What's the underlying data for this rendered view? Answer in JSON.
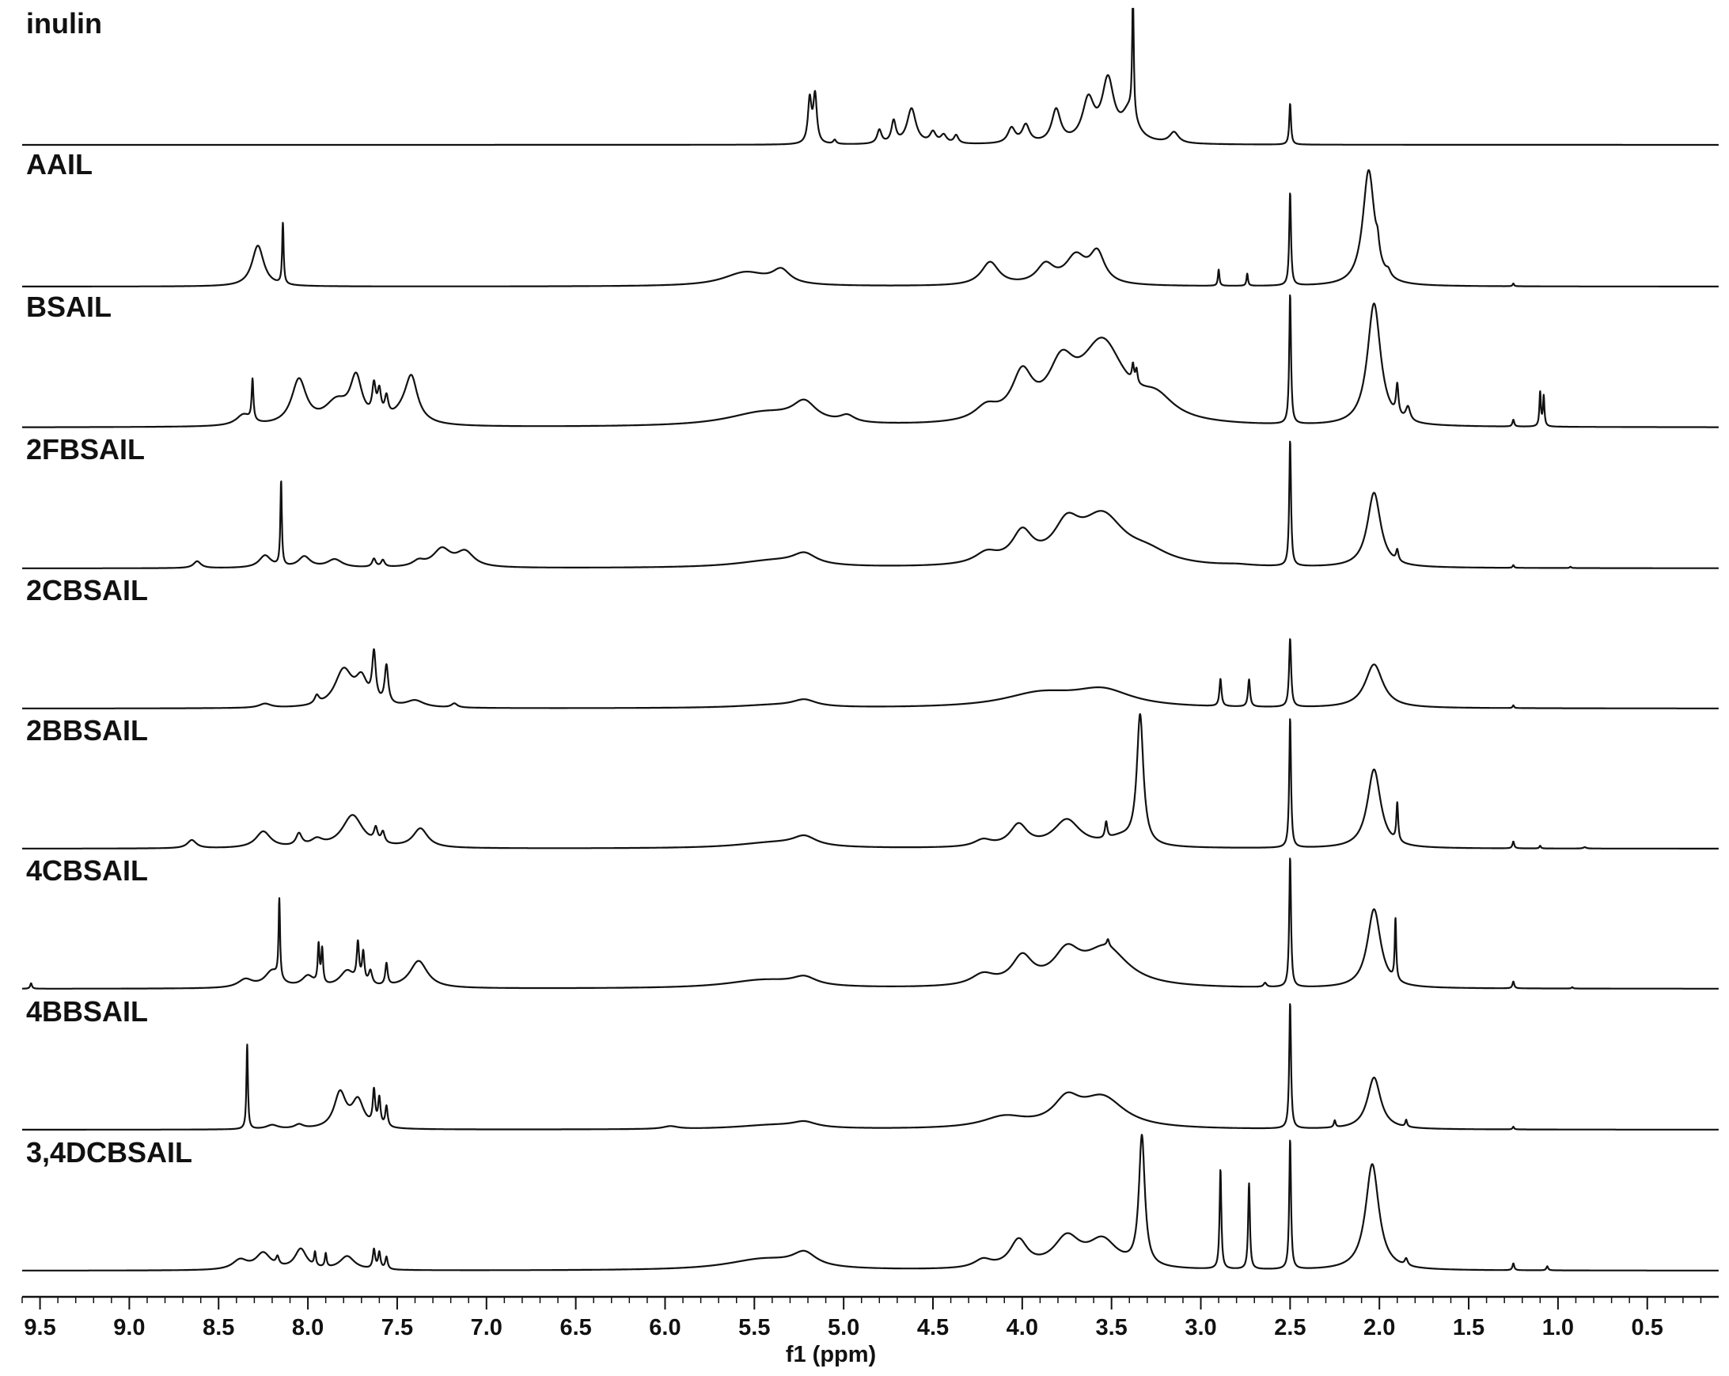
{
  "chart_data": {
    "type": "line",
    "title": "",
    "xlabel": "f1 (ppm)",
    "ylabel": "",
    "xlim": [
      9.6,
      0.1
    ],
    "x_reversed": true,
    "grid": false,
    "legend": "none",
    "xticks": [
      "9.5",
      "9.0",
      "8.5",
      "8.0",
      "7.5",
      "7.0",
      "6.5",
      "6.0",
      "5.5",
      "5.0",
      "4.5",
      "4.0",
      "3.5",
      "3.0",
      "2.5",
      "2.0",
      "1.5",
      "1.0",
      "0.5"
    ],
    "line_color": "#111111",
    "series": [
      {
        "name": "inulin",
        "peaks": [
          [
            5.19,
            0.32,
            0.012
          ],
          [
            5.16,
            0.35,
            0.012
          ],
          [
            5.05,
            0.03,
            0.01
          ],
          [
            4.8,
            0.1,
            0.015
          ],
          [
            4.72,
            0.16,
            0.015
          ],
          [
            4.62,
            0.26,
            0.03
          ],
          [
            4.5,
            0.08,
            0.02
          ],
          [
            4.44,
            0.06,
            0.02
          ],
          [
            4.37,
            0.06,
            0.015
          ],
          [
            4.06,
            0.11,
            0.025
          ],
          [
            3.98,
            0.13,
            0.025
          ],
          [
            3.81,
            0.24,
            0.03
          ],
          [
            3.63,
            0.3,
            0.04
          ],
          [
            3.52,
            0.44,
            0.04
          ],
          [
            3.4,
            0.22,
            0.05
          ],
          [
            3.38,
            0.95,
            0.005
          ],
          [
            3.15,
            0.08,
            0.03
          ],
          [
            2.5,
            0.3,
            0.006
          ]
        ]
      },
      {
        "name": "AAIL",
        "peaks": [
          [
            8.28,
            0.3,
            0.04
          ],
          [
            8.14,
            0.45,
            0.005
          ],
          [
            5.55,
            0.1,
            0.15
          ],
          [
            5.35,
            0.1,
            0.06
          ],
          [
            4.18,
            0.17,
            0.06
          ],
          [
            3.87,
            0.14,
            0.06
          ],
          [
            3.7,
            0.2,
            0.07
          ],
          [
            3.58,
            0.22,
            0.05
          ],
          [
            2.9,
            0.12,
            0.005
          ],
          [
            2.74,
            0.09,
            0.005
          ],
          [
            2.5,
            0.68,
            0.006
          ],
          [
            2.06,
            0.85,
            0.04
          ],
          [
            2.01,
            0.1,
            0.01
          ],
          [
            1.95,
            0.04,
            0.015
          ],
          [
            1.25,
            0.02,
            0.005
          ]
        ]
      },
      {
        "name": "BSAIL",
        "peaks": [
          [
            8.36,
            0.08,
            0.05
          ],
          [
            8.31,
            0.3,
            0.006
          ],
          [
            8.05,
            0.33,
            0.05
          ],
          [
            7.84,
            0.16,
            0.08
          ],
          [
            7.73,
            0.32,
            0.04
          ],
          [
            7.63,
            0.22,
            0.012
          ],
          [
            7.6,
            0.18,
            0.012
          ],
          [
            7.56,
            0.14,
            0.012
          ],
          [
            7.45,
            0.1,
            0.08
          ],
          [
            7.42,
            0.28,
            0.04
          ],
          [
            5.45,
            0.1,
            0.25
          ],
          [
            5.22,
            0.14,
            0.08
          ],
          [
            4.98,
            0.05,
            0.05
          ],
          [
            4.2,
            0.1,
            0.08
          ],
          [
            4.0,
            0.32,
            0.07
          ],
          [
            3.78,
            0.35,
            0.09
          ],
          [
            3.55,
            0.58,
            0.15
          ],
          [
            3.38,
            0.12,
            0.007
          ],
          [
            3.36,
            0.1,
            0.007
          ],
          [
            3.25,
            0.15,
            0.12
          ],
          [
            2.5,
            0.95,
            0.006
          ],
          [
            2.03,
            0.9,
            0.045
          ],
          [
            1.9,
            0.22,
            0.008
          ],
          [
            1.84,
            0.1,
            0.015
          ],
          [
            1.25,
            0.05,
            0.006
          ],
          [
            1.1,
            0.25,
            0.005
          ],
          [
            1.08,
            0.22,
            0.005
          ]
        ]
      },
      {
        "name": "2FBSAIL",
        "peaks": [
          [
            8.62,
            0.05,
            0.025
          ],
          [
            8.24,
            0.09,
            0.04
          ],
          [
            8.15,
            0.62,
            0.005
          ],
          [
            8.02,
            0.08,
            0.04
          ],
          [
            7.85,
            0.06,
            0.05
          ],
          [
            7.63,
            0.06,
            0.012
          ],
          [
            7.58,
            0.05,
            0.012
          ],
          [
            7.38,
            0.04,
            0.04
          ],
          [
            7.25,
            0.13,
            0.06
          ],
          [
            7.12,
            0.11,
            0.06
          ],
          [
            5.4,
            0.05,
            0.25
          ],
          [
            5.22,
            0.08,
            0.08
          ],
          [
            4.2,
            0.08,
            0.08
          ],
          [
            4.0,
            0.22,
            0.07
          ],
          [
            3.75,
            0.25,
            0.09
          ],
          [
            3.55,
            0.35,
            0.15
          ],
          [
            3.3,
            0.08,
            0.15
          ],
          [
            2.8,
            0.01,
            0.1
          ],
          [
            2.5,
            0.92,
            0.006
          ],
          [
            2.03,
            0.55,
            0.045
          ],
          [
            1.9,
            0.08,
            0.008
          ],
          [
            1.25,
            0.02,
            0.005
          ],
          [
            0.93,
            0.01,
            0.005
          ]
        ]
      },
      {
        "name": "2CBSAIL",
        "peaks": [
          [
            8.24,
            0.03,
            0.04
          ],
          [
            7.95,
            0.06,
            0.015
          ],
          [
            7.8,
            0.27,
            0.06
          ],
          [
            7.7,
            0.18,
            0.04
          ],
          [
            7.63,
            0.35,
            0.012
          ],
          [
            7.56,
            0.28,
            0.012
          ],
          [
            7.4,
            0.05,
            0.06
          ],
          [
            7.18,
            0.03,
            0.02
          ],
          [
            5.4,
            0.02,
            0.25
          ],
          [
            5.22,
            0.05,
            0.08
          ],
          [
            3.9,
            0.1,
            0.25
          ],
          [
            3.55,
            0.12,
            0.2
          ],
          [
            2.89,
            0.2,
            0.007
          ],
          [
            2.73,
            0.2,
            0.007
          ],
          [
            2.5,
            0.5,
            0.007
          ],
          [
            2.03,
            0.32,
            0.06
          ],
          [
            1.25,
            0.02,
            0.005
          ]
        ]
      },
      {
        "name": "2BBSAIL",
        "peaks": [
          [
            8.65,
            0.06,
            0.03
          ],
          [
            8.25,
            0.12,
            0.05
          ],
          [
            8.05,
            0.09,
            0.02
          ],
          [
            7.95,
            0.05,
            0.04
          ],
          [
            7.75,
            0.24,
            0.07
          ],
          [
            7.62,
            0.1,
            0.012
          ],
          [
            7.58,
            0.08,
            0.012
          ],
          [
            7.37,
            0.14,
            0.05
          ],
          [
            5.4,
            0.04,
            0.25
          ],
          [
            5.22,
            0.07,
            0.08
          ],
          [
            4.22,
            0.05,
            0.06
          ],
          [
            4.02,
            0.16,
            0.06
          ],
          [
            3.75,
            0.2,
            0.09
          ],
          [
            3.53,
            0.12,
            0.008
          ],
          [
            3.45,
            0.06,
            0.1
          ],
          [
            3.34,
            0.95,
            0.022
          ],
          [
            2.5,
            0.95,
            0.006
          ],
          [
            2.03,
            0.58,
            0.045
          ],
          [
            1.9,
            0.28,
            0.006
          ],
          [
            1.25,
            0.05,
            0.006
          ],
          [
            1.1,
            0.02,
            0.005
          ],
          [
            0.85,
            0.01,
            0.01
          ]
        ]
      },
      {
        "name": "4CBSAIL",
        "peaks": [
          [
            9.55,
            0.04,
            0.006
          ],
          [
            8.35,
            0.06,
            0.05
          ],
          [
            8.2,
            0.12,
            0.05
          ],
          [
            8.16,
            0.58,
            0.005
          ],
          [
            8.0,
            0.08,
            0.04
          ],
          [
            7.94,
            0.28,
            0.006
          ],
          [
            7.92,
            0.25,
            0.006
          ],
          [
            7.78,
            0.12,
            0.05
          ],
          [
            7.72,
            0.28,
            0.008
          ],
          [
            7.69,
            0.22,
            0.008
          ],
          [
            7.65,
            0.1,
            0.012
          ],
          [
            7.56,
            0.16,
            0.008
          ],
          [
            7.38,
            0.2,
            0.06
          ],
          [
            5.45,
            0.06,
            0.25
          ],
          [
            5.22,
            0.06,
            0.08
          ],
          [
            4.22,
            0.08,
            0.08
          ],
          [
            4.0,
            0.2,
            0.07
          ],
          [
            3.75,
            0.22,
            0.09
          ],
          [
            3.53,
            0.28,
            0.15
          ],
          [
            3.52,
            0.05,
            0.008
          ],
          [
            2.64,
            0.03,
            0.01
          ],
          [
            2.5,
            0.95,
            0.006
          ],
          [
            2.03,
            0.58,
            0.045
          ],
          [
            1.91,
            0.45,
            0.005
          ],
          [
            1.25,
            0.05,
            0.006
          ],
          [
            0.92,
            0.01,
            0.005
          ]
        ]
      },
      {
        "name": "4BBSAIL",
        "peaks": [
          [
            8.34,
            0.62,
            0.005
          ],
          [
            8.2,
            0.03,
            0.04
          ],
          [
            8.05,
            0.03,
            0.03
          ],
          [
            7.82,
            0.26,
            0.04
          ],
          [
            7.72,
            0.2,
            0.04
          ],
          [
            7.63,
            0.25,
            0.008
          ],
          [
            7.6,
            0.2,
            0.008
          ],
          [
            7.56,
            0.15,
            0.008
          ],
          [
            5.97,
            0.02,
            0.05
          ],
          [
            5.4,
            0.03,
            0.25
          ],
          [
            5.22,
            0.04,
            0.08
          ],
          [
            4.1,
            0.08,
            0.15
          ],
          [
            3.75,
            0.18,
            0.09
          ],
          [
            3.55,
            0.22,
            0.15
          ],
          [
            2.5,
            0.92,
            0.006
          ],
          [
            2.25,
            0.05,
            0.006
          ],
          [
            2.03,
            0.38,
            0.045
          ],
          [
            1.85,
            0.05,
            0.006
          ],
          [
            1.25,
            0.02,
            0.005
          ]
        ]
      },
      {
        "name": "3,4DCBSAIL",
        "peaks": [
          [
            8.38,
            0.07,
            0.05
          ],
          [
            8.25,
            0.12,
            0.05
          ],
          [
            8.17,
            0.06,
            0.01
          ],
          [
            8.04,
            0.15,
            0.04
          ],
          [
            7.96,
            0.1,
            0.006
          ],
          [
            7.9,
            0.1,
            0.006
          ],
          [
            7.78,
            0.1,
            0.05
          ],
          [
            7.63,
            0.14,
            0.008
          ],
          [
            7.6,
            0.12,
            0.008
          ],
          [
            7.56,
            0.09,
            0.008
          ],
          [
            5.45,
            0.08,
            0.25
          ],
          [
            5.22,
            0.1,
            0.08
          ],
          [
            4.22,
            0.06,
            0.06
          ],
          [
            4.02,
            0.2,
            0.06
          ],
          [
            3.75,
            0.22,
            0.09
          ],
          [
            3.55,
            0.2,
            0.1
          ],
          [
            3.33,
            0.95,
            0.02
          ],
          [
            2.89,
            0.73,
            0.006
          ],
          [
            2.73,
            0.63,
            0.006
          ],
          [
            2.5,
            0.95,
            0.006
          ],
          [
            2.04,
            0.78,
            0.045
          ],
          [
            1.85,
            0.05,
            0.01
          ],
          [
            1.25,
            0.05,
            0.006
          ],
          [
            1.06,
            0.03,
            0.006
          ]
        ]
      }
    ]
  }
}
